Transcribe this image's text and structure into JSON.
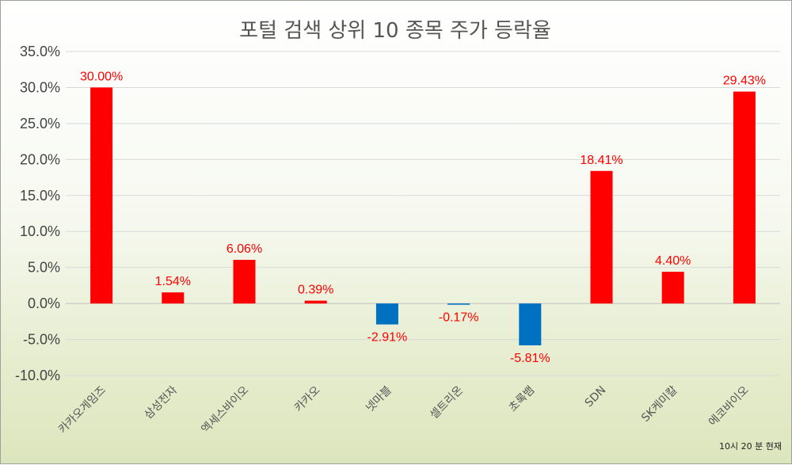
{
  "chart_data": {
    "type": "bar",
    "title": "포털 검색 상위 10 종목 주가 등락율",
    "note": "10시 20 분 현재",
    "categories": [
      "카카오게임즈",
      "삼성전자",
      "엑세스바이오",
      "카카오",
      "넷마블",
      "셀트리온",
      "초록뱀",
      "SDN",
      "SK케미칼",
      "에코바이오"
    ],
    "values": [
      30.0,
      1.54,
      6.06,
      0.39,
      -2.91,
      -0.17,
      -5.81,
      18.41,
      4.4,
      29.43
    ],
    "data_labels": [
      "30.00%",
      "1.54%",
      "6.06%",
      "0.39%",
      "-2.91%",
      "-0.17%",
      "-5.81%",
      "18.41%",
      "4.40%",
      "29.43%"
    ],
    "ylim": [
      -10,
      35
    ],
    "yticks": [
      35,
      30,
      25,
      20,
      15,
      10,
      5,
      0,
      -5,
      -10
    ],
    "ytick_labels": [
      "35.0%",
      "30.0%",
      "25.0%",
      "20.0%",
      "15.0%",
      "10.0%",
      "5.0%",
      "0.0%",
      "-5.0%",
      "-10.0%"
    ],
    "grid": true,
    "colors": {
      "positive": "#ff0000",
      "negative": "#0070c0",
      "positive_label": "#ff0000",
      "negative_label": "#ff0000"
    }
  }
}
